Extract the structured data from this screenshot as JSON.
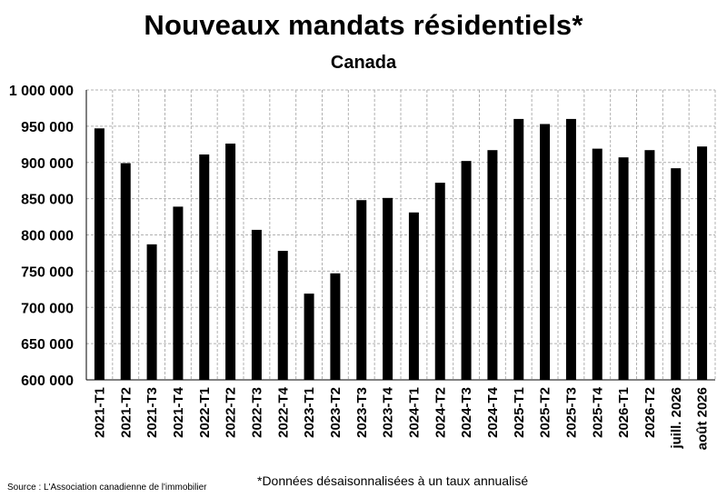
{
  "chart_data": {
    "type": "bar",
    "title": "Nouveaux mandats résidentiels*",
    "subtitle": "Canada",
    "categories": [
      "2021-T1",
      "2021-T2",
      "2021-T3",
      "2021-T4",
      "2022-T1",
      "2022-T2",
      "2022-T3",
      "2022-T4",
      "2023-T1",
      "2023-T2",
      "2023-T3",
      "2023-T4",
      "2024-T1",
      "2024-T2",
      "2024-T3",
      "2024-T4",
      "2025-T1",
      "2025-T2",
      "2025-T3",
      "2025-T4",
      "2026-T1",
      "2026-T2",
      "juill. 2026",
      "août 2026"
    ],
    "values": [
      947000,
      899000,
      787000,
      839000,
      911000,
      926000,
      807000,
      778000,
      719000,
      747000,
      848000,
      851000,
      831000,
      872000,
      902000,
      917000,
      960000,
      953000,
      960000,
      919000,
      907000,
      917000,
      892000,
      922000
    ],
    "ylim": [
      600000,
      1000000
    ],
    "yticks": [
      600000,
      650000,
      700000,
      750000,
      800000,
      850000,
      900000,
      950000,
      1000000
    ],
    "ytick_labels": [
      "600 000",
      "650 000",
      "700 000",
      "750 000",
      "800 000",
      "850 000",
      "900 000",
      "950 000",
      "1 000 000"
    ],
    "xlabel": "",
    "ylabel": "",
    "grid": true,
    "bar_color": "#000000",
    "grid_color": "#b0b0b0"
  },
  "footnote": "*Données désaisonnalisées à un taux annualisé",
  "source": "Source : L'Association canadienne de l'immobilier"
}
